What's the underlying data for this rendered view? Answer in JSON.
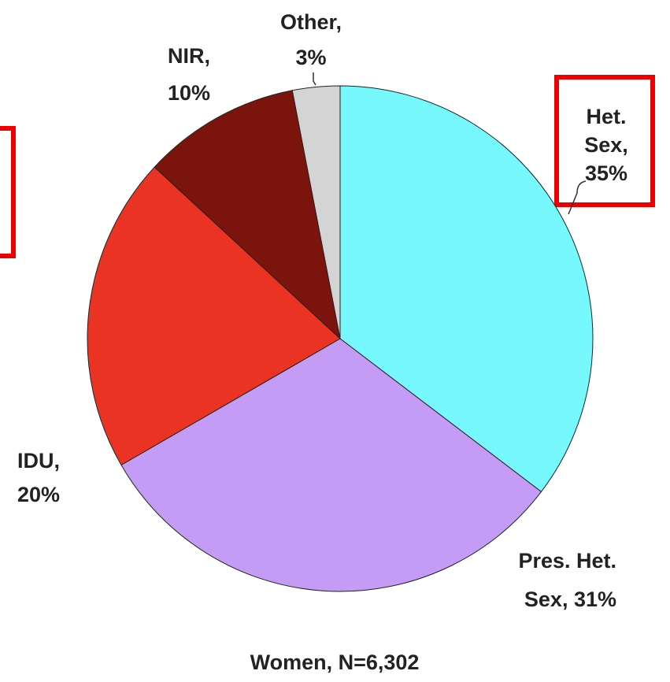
{
  "chart_data": {
    "type": "pie",
    "title": "Women, N=6,302",
    "categories": [
      [
        "Het.",
        "Sex,",
        "35%"
      ],
      [
        "Pres. Het.",
        "Sex, 31%"
      ],
      [
        "IDU,",
        "20%"
      ],
      [
        "NIR,",
        "10%"
      ],
      [
        "Other,",
        "3%"
      ]
    ],
    "values": [
      35,
      31,
      20,
      10,
      3
    ],
    "colors": [
      "#77f8fc",
      "#c49cf6",
      "#ea3323",
      "#7a140c",
      "#d4d4d4"
    ]
  }
}
